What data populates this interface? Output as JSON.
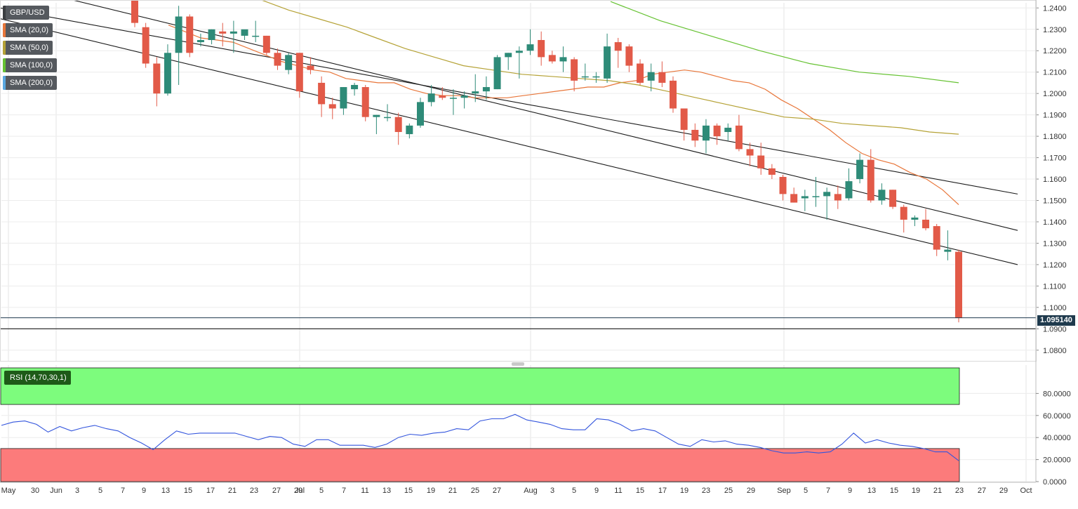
{
  "symbol": "GBP/USD",
  "indicators": [
    {
      "label": "SMA (20,0)",
      "color": "#e8763a"
    },
    {
      "label": "SMA (50,0)",
      "color": "#b5a236"
    },
    {
      "label": "SMA (100,0)",
      "color": "#66c232"
    },
    {
      "label": "SMA (200,0)",
      "color": "#5aa8e0"
    }
  ],
  "rsi": {
    "label": "RSI (14,70,30,1)",
    "color": "#3355dd",
    "overbought": 70,
    "oversold": 30,
    "overbought_color": "#7dfc7d",
    "oversold_color": "#fc7b7b"
  },
  "current_price": {
    "label": "1.095140",
    "value": 1.09514
  },
  "support_level": 1.09,
  "colors": {
    "up": "#2e8b78",
    "down": "#e25a48"
  },
  "chart_data": {
    "type": "candlestick",
    "price_ylim": [
      1.075,
      1.2424
    ],
    "price_ticks": [
      "1.2400",
      "1.2300",
      "1.2200",
      "1.2100",
      "1.2000",
      "1.1900",
      "1.1800",
      "1.1700",
      "1.1600",
      "1.1500",
      "1.1400",
      "1.1300",
      "1.1200",
      "1.1100",
      "1.1000",
      "1.0900",
      "1.0800"
    ],
    "rsi_ylim": [
      0,
      100
    ],
    "rsi_ticks": [
      "80.0000",
      "60.0000",
      "40.0000",
      "20.0000",
      "0.0000"
    ],
    "x_labels": [
      "May",
      "30",
      "Jun",
      "3",
      "5",
      "7",
      "9",
      "13",
      "15",
      "17",
      "21",
      "23",
      "27",
      "29",
      "Jul",
      "5",
      "7",
      "11",
      "13",
      "15",
      "19",
      "21",
      "25",
      "27",
      "Aug",
      "3",
      "5",
      "9",
      "11",
      "15",
      "17",
      "19",
      "23",
      "25",
      "29",
      "Sep",
      "5",
      "7",
      "9",
      "13",
      "15",
      "19",
      "21",
      "23",
      "27",
      "29",
      "Oct"
    ],
    "candles": [
      {
        "o": 1.244,
        "h": 1.2445,
        "l": 1.231,
        "c": 1.233
      },
      {
        "o": 1.231,
        "h": 1.233,
        "l": 1.212,
        "c": 1.214
      },
      {
        "o": 1.214,
        "h": 1.217,
        "l": 1.194,
        "c": 1.2
      },
      {
        "o": 1.2,
        "h": 1.223,
        "l": 1.199,
        "c": 1.219
      },
      {
        "o": 1.219,
        "h": 1.241,
        "l": 1.204,
        "c": 1.236
      },
      {
        "o": 1.236,
        "h": 1.237,
        "l": 1.217,
        "c": 1.219
      },
      {
        "o": 1.224,
        "h": 1.228,
        "l": 1.222,
        "c": 1.225
      },
      {
        "o": 1.225,
        "h": 1.23,
        "l": 1.223,
        "c": 1.23
      },
      {
        "o": 1.229,
        "h": 1.233,
        "l": 1.222,
        "c": 1.228
      },
      {
        "o": 1.228,
        "h": 1.234,
        "l": 1.219,
        "c": 1.229
      },
      {
        "o": 1.227,
        "h": 1.229,
        "l": 1.225,
        "c": 1.23
      },
      {
        "o": 1.227,
        "h": 1.234,
        "l": 1.224,
        "c": 1.227
      },
      {
        "o": 1.227,
        "h": 1.227,
        "l": 1.218,
        "c": 1.219
      },
      {
        "o": 1.219,
        "h": 1.221,
        "l": 1.211,
        "c": 1.213
      },
      {
        "o": 1.211,
        "h": 1.219,
        "l": 1.209,
        "c": 1.218
      },
      {
        "o": 1.219,
        "h": 1.219,
        "l": 1.198,
        "c": 1.201
      },
      {
        "o": 1.213,
        "h": 1.217,
        "l": 1.209,
        "c": 1.211
      },
      {
        "o": 1.205,
        "h": 1.208,
        "l": 1.189,
        "c": 1.195
      },
      {
        "o": 1.195,
        "h": 1.198,
        "l": 1.188,
        "c": 1.193
      },
      {
        "o": 1.193,
        "h": 1.203,
        "l": 1.19,
        "c": 1.203
      },
      {
        "o": 1.202,
        "h": 1.205,
        "l": 1.199,
        "c": 1.204
      },
      {
        "o": 1.203,
        "h": 1.204,
        "l": 1.187,
        "c": 1.189
      },
      {
        "o": 1.189,
        "h": 1.19,
        "l": 1.181,
        "c": 1.19
      },
      {
        "o": 1.189,
        "h": 1.195,
        "l": 1.187,
        "c": 1.189
      },
      {
        "o": 1.189,
        "h": 1.191,
        "l": 1.176,
        "c": 1.182
      },
      {
        "o": 1.181,
        "h": 1.186,
        "l": 1.179,
        "c": 1.185
      },
      {
        "o": 1.185,
        "h": 1.198,
        "l": 1.184,
        "c": 1.196
      },
      {
        "o": 1.196,
        "h": 1.204,
        "l": 1.194,
        "c": 1.2
      },
      {
        "o": 1.199,
        "h": 1.203,
        "l": 1.197,
        "c": 1.198
      },
      {
        "o": 1.198,
        "h": 1.202,
        "l": 1.19,
        "c": 1.198
      },
      {
        "o": 1.198,
        "h": 1.201,
        "l": 1.193,
        "c": 1.199
      },
      {
        "o": 1.2,
        "h": 1.209,
        "l": 1.196,
        "c": 1.201
      },
      {
        "o": 1.201,
        "h": 1.208,
        "l": 1.197,
        "c": 1.203
      },
      {
        "o": 1.202,
        "h": 1.218,
        "l": 1.202,
        "c": 1.217
      },
      {
        "o": 1.217,
        "h": 1.219,
        "l": 1.211,
        "c": 1.219
      },
      {
        "o": 1.219,
        "h": 1.222,
        "l": 1.207,
        "c": 1.22
      },
      {
        "o": 1.22,
        "h": 1.23,
        "l": 1.218,
        "c": 1.223
      },
      {
        "o": 1.225,
        "h": 1.229,
        "l": 1.213,
        "c": 1.217
      },
      {
        "o": 1.218,
        "h": 1.22,
        "l": 1.214,
        "c": 1.215
      },
      {
        "o": 1.215,
        "h": 1.222,
        "l": 1.21,
        "c": 1.217
      },
      {
        "o": 1.216,
        "h": 1.217,
        "l": 1.201,
        "c": 1.206
      },
      {
        "o": 1.208,
        "h": 1.214,
        "l": 1.206,
        "c": 1.208
      },
      {
        "o": 1.208,
        "h": 1.21,
        "l": 1.205,
        "c": 1.208
      },
      {
        "o": 1.207,
        "h": 1.228,
        "l": 1.205,
        "c": 1.222
      },
      {
        "o": 1.224,
        "h": 1.226,
        "l": 1.212,
        "c": 1.22
      },
      {
        "o": 1.222,
        "h": 1.223,
        "l": 1.21,
        "c": 1.213
      },
      {
        "o": 1.214,
        "h": 1.216,
        "l": 1.204,
        "c": 1.205
      },
      {
        "o": 1.206,
        "h": 1.214,
        "l": 1.201,
        "c": 1.21
      },
      {
        "o": 1.21,
        "h": 1.215,
        "l": 1.203,
        "c": 1.205
      },
      {
        "o": 1.206,
        "h": 1.208,
        "l": 1.191,
        "c": 1.193
      },
      {
        "o": 1.193,
        "h": 1.193,
        "l": 1.178,
        "c": 1.183
      },
      {
        "o": 1.183,
        "h": 1.186,
        "l": 1.175,
        "c": 1.178
      },
      {
        "o": 1.178,
        "h": 1.188,
        "l": 1.172,
        "c": 1.185
      },
      {
        "o": 1.185,
        "h": 1.186,
        "l": 1.176,
        "c": 1.18
      },
      {
        "o": 1.182,
        "h": 1.186,
        "l": 1.178,
        "c": 1.184
      },
      {
        "o": 1.185,
        "h": 1.19,
        "l": 1.173,
        "c": 1.174
      },
      {
        "o": 1.174,
        "h": 1.177,
        "l": 1.166,
        "c": 1.171
      },
      {
        "o": 1.171,
        "h": 1.177,
        "l": 1.162,
        "c": 1.165
      },
      {
        "o": 1.165,
        "h": 1.167,
        "l": 1.16,
        "c": 1.162
      },
      {
        "o": 1.161,
        "h": 1.162,
        "l": 1.15,
        "c": 1.153
      },
      {
        "o": 1.153,
        "h": 1.156,
        "l": 1.149,
        "c": 1.149
      },
      {
        "o": 1.151,
        "h": 1.155,
        "l": 1.145,
        "c": 1.152
      },
      {
        "o": 1.152,
        "h": 1.161,
        "l": 1.147,
        "c": 1.152
      },
      {
        "o": 1.152,
        "h": 1.156,
        "l": 1.141,
        "c": 1.154
      },
      {
        "o": 1.153,
        "h": 1.157,
        "l": 1.146,
        "c": 1.15
      },
      {
        "o": 1.151,
        "h": 1.165,
        "l": 1.15,
        "c": 1.159
      },
      {
        "o": 1.16,
        "h": 1.172,
        "l": 1.158,
        "c": 1.169
      },
      {
        "o": 1.169,
        "h": 1.174,
        "l": 1.149,
        "c": 1.15
      },
      {
        "o": 1.15,
        "h": 1.158,
        "l": 1.148,
        "c": 1.155
      },
      {
        "o": 1.155,
        "h": 1.155,
        "l": 1.146,
        "c": 1.147
      },
      {
        "o": 1.147,
        "h": 1.148,
        "l": 1.135,
        "c": 1.141
      },
      {
        "o": 1.141,
        "h": 1.143,
        "l": 1.138,
        "c": 1.142
      },
      {
        "o": 1.141,
        "h": 1.146,
        "l": 1.136,
        "c": 1.137
      },
      {
        "o": 1.138,
        "h": 1.139,
        "l": 1.124,
        "c": 1.127
      },
      {
        "o": 1.126,
        "h": 1.136,
        "l": 1.122,
        "c": 1.127
      },
      {
        "o": 1.126,
        "h": 1.127,
        "l": 1.093,
        "c": 1.095
      }
    ],
    "sma20": [
      1.232,
      1.229,
      1.226,
      1.225,
      1.224,
      1.221,
      1.218,
      1.215,
      1.213,
      1.211,
      1.21,
      1.207,
      1.206,
      1.205,
      1.205,
      1.202,
      1.2,
      1.199,
      1.199,
      1.198,
      1.198,
      1.198,
      1.199,
      1.2,
      1.201,
      1.202,
      1.203,
      1.203,
      1.205,
      1.206,
      1.209,
      1.21,
      1.211,
      1.21,
      1.208,
      1.206,
      1.205,
      1.202,
      1.197,
      1.193,
      1.188,
      1.183,
      1.177,
      1.172,
      1.169,
      1.167,
      1.163,
      1.16,
      1.155,
      1.148
    ],
    "sma50": [
      1.244,
      1.239,
      1.235,
      1.231,
      1.226,
      1.221,
      1.217,
      1.213,
      1.211,
      1.209,
      1.208,
      1.207,
      1.206,
      1.204,
      1.201,
      1.198,
      1.195,
      1.192,
      1.189,
      1.188,
      1.186,
      1.185,
      1.184,
      1.182,
      1.181
    ],
    "sma100": [
      1.243,
      1.234,
      1.227,
      1.22,
      1.214,
      1.21,
      1.208,
      1.205
    ],
    "rsi_values": [
      51,
      54,
      55,
      52,
      45,
      50,
      46,
      49,
      51,
      48,
      46,
      40,
      35,
      29,
      38,
      46,
      43,
      44,
      44,
      44,
      44,
      41,
      38,
      41,
      40,
      34,
      32,
      38,
      38,
      33,
      33,
      33,
      31,
      34,
      40,
      43,
      42,
      44,
      45,
      48,
      47,
      55,
      57,
      57,
      61,
      56,
      54,
      52,
      48,
      47,
      47,
      57,
      56,
      52,
      46,
      48,
      46,
      40,
      34,
      32,
      38,
      36,
      37,
      34,
      33,
      31,
      28,
      26,
      26,
      27,
      26,
      27,
      34,
      44,
      35,
      38,
      35,
      33,
      32,
      30,
      27,
      27,
      19
    ],
    "channel_lines": [
      {
        "x1": 0,
        "y1": 1.24,
        "x2": 1450,
        "y2": 1.153
      },
      {
        "x1": 0,
        "y1": 1.252,
        "x2": 1450,
        "y2": 1.136
      },
      {
        "x1": 0,
        "y1": 1.235,
        "x2": 1450,
        "y2": 1.12
      }
    ]
  }
}
